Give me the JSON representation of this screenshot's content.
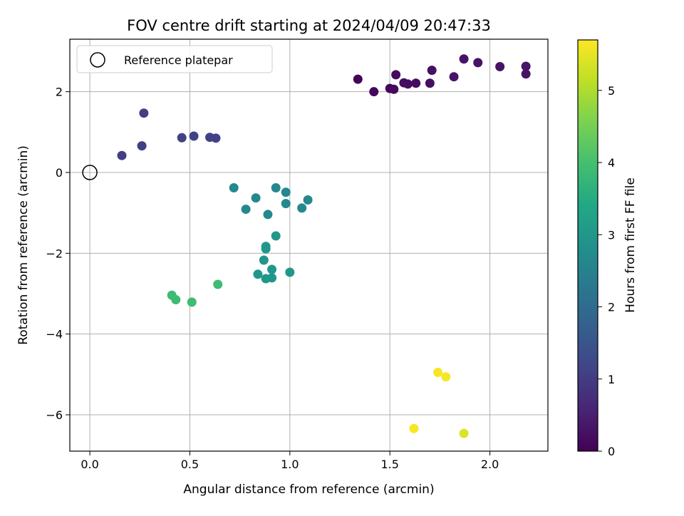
{
  "chart_data": {
    "type": "scatter",
    "title": "FOV centre drift starting at 2024/04/09 20:47:33",
    "xlabel": "Angular distance from reference (arcmin)",
    "ylabel": "Rotation from reference (arcmin)",
    "xlim": [
      -0.1,
      2.29
    ],
    "ylim": [
      -6.9,
      3.3
    ],
    "xticks": [
      0.0,
      0.5,
      1.0,
      1.5,
      2.0
    ],
    "xtick_labels": [
      "0.0",
      "0.5",
      "1.0",
      "1.5",
      "2.0"
    ],
    "yticks": [
      -6,
      -4,
      -2,
      0,
      2
    ],
    "ytick_labels": [
      "−6",
      "−4",
      "−2",
      "0",
      "2"
    ],
    "grid": true,
    "legend": {
      "placement": "top-left",
      "entries": [
        "Reference platepar"
      ]
    },
    "reference_point": {
      "x": 0.0,
      "y": 0.0,
      "label": "Reference platepar"
    },
    "colorbar": {
      "label": "Hours from first FF file",
      "colormap": "viridis",
      "range": [
        0,
        5.7
      ],
      "ticks": [
        0,
        1,
        2,
        3,
        4,
        5
      ],
      "tick_labels": [
        "0",
        "1",
        "2",
        "3",
        "4",
        "5"
      ]
    },
    "points": [
      {
        "x": 1.34,
        "y": 2.31,
        "c": 0.05
      },
      {
        "x": 1.42,
        "y": 2.0,
        "c": 0.1
      },
      {
        "x": 1.5,
        "y": 2.08,
        "c": 0.1
      },
      {
        "x": 1.52,
        "y": 2.06,
        "c": 0.15
      },
      {
        "x": 1.53,
        "y": 2.42,
        "c": 0.15
      },
      {
        "x": 1.57,
        "y": 2.22,
        "c": 0.2
      },
      {
        "x": 1.59,
        "y": 2.19,
        "c": 0.2
      },
      {
        "x": 1.63,
        "y": 2.21,
        "c": 0.2
      },
      {
        "x": 1.7,
        "y": 2.21,
        "c": 0.25
      },
      {
        "x": 1.71,
        "y": 2.53,
        "c": 0.25
      },
      {
        "x": 1.82,
        "y": 2.37,
        "c": 0.3
      },
      {
        "x": 1.87,
        "y": 2.81,
        "c": 0.3
      },
      {
        "x": 1.94,
        "y": 2.72,
        "c": 0.3
      },
      {
        "x": 2.05,
        "y": 2.62,
        "c": 0.3
      },
      {
        "x": 2.18,
        "y": 2.63,
        "c": 0.3
      },
      {
        "x": 2.18,
        "y": 2.44,
        "c": 0.3
      },
      {
        "x": 0.16,
        "y": 0.42,
        "c": 1.05
      },
      {
        "x": 0.26,
        "y": 0.66,
        "c": 1.05
      },
      {
        "x": 0.27,
        "y": 1.47,
        "c": 1.05
      },
      {
        "x": 0.46,
        "y": 0.86,
        "c": 1.1
      },
      {
        "x": 0.52,
        "y": 0.9,
        "c": 1.1
      },
      {
        "x": 0.6,
        "y": 0.87,
        "c": 1.1
      },
      {
        "x": 0.63,
        "y": 0.85,
        "c": 1.1
      },
      {
        "x": 0.72,
        "y": -0.38,
        "c": 2.65
      },
      {
        "x": 0.78,
        "y": -0.91,
        "c": 2.65
      },
      {
        "x": 0.83,
        "y": -0.63,
        "c": 2.65
      },
      {
        "x": 0.89,
        "y": -1.04,
        "c": 2.65
      },
      {
        "x": 0.93,
        "y": -0.38,
        "c": 2.65
      },
      {
        "x": 0.98,
        "y": -0.77,
        "c": 2.65
      },
      {
        "x": 0.98,
        "y": -0.49,
        "c": 2.65
      },
      {
        "x": 1.06,
        "y": -0.88,
        "c": 2.65
      },
      {
        "x": 1.09,
        "y": -0.68,
        "c": 2.65
      },
      {
        "x": 0.93,
        "y": -1.57,
        "c": 3.0
      },
      {
        "x": 0.88,
        "y": -1.83,
        "c": 3.0
      },
      {
        "x": 0.88,
        "y": -1.89,
        "c": 3.0
      },
      {
        "x": 0.87,
        "y": -2.17,
        "c": 3.0
      },
      {
        "x": 0.84,
        "y": -2.52,
        "c": 3.0
      },
      {
        "x": 0.88,
        "y": -2.63,
        "c": 3.0
      },
      {
        "x": 0.91,
        "y": -2.4,
        "c": 3.0
      },
      {
        "x": 0.91,
        "y": -2.61,
        "c": 3.0
      },
      {
        "x": 1.0,
        "y": -2.47,
        "c": 3.0
      },
      {
        "x": 0.64,
        "y": -2.77,
        "c": 3.9
      },
      {
        "x": 0.41,
        "y": -3.04,
        "c": 3.9
      },
      {
        "x": 0.43,
        "y": -3.15,
        "c": 3.9
      },
      {
        "x": 0.51,
        "y": -3.21,
        "c": 3.9
      },
      {
        "x": 1.74,
        "y": -4.95,
        "c": 5.65
      },
      {
        "x": 1.78,
        "y": -5.06,
        "c": 5.65
      },
      {
        "x": 1.62,
        "y": -6.34,
        "c": 5.65
      },
      {
        "x": 1.87,
        "y": -6.46,
        "c": 5.4
      }
    ]
  }
}
